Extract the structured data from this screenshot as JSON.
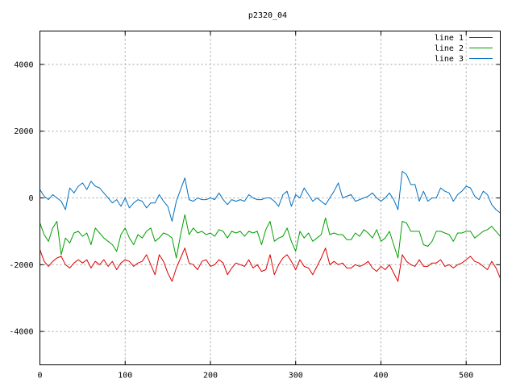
{
  "chart_data": {
    "type": "line",
    "title": "p2320_04",
    "xlabel": "",
    "ylabel": "",
    "xlim": [
      0,
      540
    ],
    "ylim": [
      -5000,
      5000
    ],
    "xticks": [
      0,
      100,
      200,
      300,
      400,
      500
    ],
    "yticks": [
      -4000,
      -2000,
      0,
      2000,
      4000
    ],
    "grid": true,
    "legend_position": "top-right",
    "series": [
      {
        "name": "line 1",
        "color": "#dd0000",
        "x": [
          0,
          5,
          10,
          15,
          20,
          25,
          30,
          35,
          40,
          45,
          50,
          55,
          60,
          65,
          70,
          75,
          80,
          85,
          90,
          95,
          100,
          105,
          110,
          115,
          120,
          125,
          130,
          135,
          140,
          145,
          150,
          155,
          160,
          165,
          170,
          175,
          180,
          185,
          190,
          195,
          200,
          205,
          210,
          215,
          220,
          225,
          230,
          235,
          240,
          245,
          250,
          255,
          260,
          265,
          270,
          275,
          280,
          285,
          290,
          295,
          300,
          305,
          310,
          315,
          320,
          325,
          330,
          335,
          340,
          345,
          350,
          355,
          360,
          365,
          370,
          375,
          380,
          385,
          390,
          395,
          400,
          405,
          410,
          415,
          420,
          425,
          430,
          435,
          440,
          445,
          450,
          455,
          460,
          465,
          470,
          475,
          480,
          485,
          490,
          495,
          500,
          505,
          510,
          515,
          520,
          525,
          530,
          535,
          540
        ],
        "values": [
          -1550,
          -1900,
          -2050,
          -1900,
          -1800,
          -1750,
          -2000,
          -2100,
          -1950,
          -1850,
          -1950,
          -1850,
          -2100,
          -1900,
          -2000,
          -1850,
          -2050,
          -1900,
          -2150,
          -1950,
          -1850,
          -1900,
          -2050,
          -1950,
          -1900,
          -1700,
          -2000,
          -2300,
          -1700,
          -1900,
          -2250,
          -2500,
          -2100,
          -1800,
          -1500,
          -1950,
          -2000,
          -2150,
          -1900,
          -1850,
          -2050,
          -2000,
          -1850,
          -1950,
          -2300,
          -2100,
          -1950,
          -2000,
          -2050,
          -1850,
          -2100,
          -2000,
          -2200,
          -2150,
          -1700,
          -2300,
          -2000,
          -1800,
          -1700,
          -1900,
          -2150,
          -1850,
          -2050,
          -2100,
          -2300,
          -2050,
          -1800,
          -1500,
          -2000,
          -1900,
          -2000,
          -1950,
          -2100,
          -2100,
          -2000,
          -2050,
          -2000,
          -1900,
          -2100,
          -2200,
          -2050,
          -2150,
          -2000,
          -2250,
          -2500,
          -1700,
          -1900,
          -2000,
          -2050,
          -1850,
          -2050,
          -2050,
          -1950,
          -1950,
          -1850,
          -2050,
          -2000,
          -2100,
          -2000,
          -1950,
          -1850,
          -1750,
          -1900,
          -1950,
          -2050,
          -2150,
          -1900,
          -2100,
          -2400
        ]
      },
      {
        "name": "line 2",
        "color": "#00a000",
        "x": [
          0,
          5,
          10,
          15,
          20,
          25,
          30,
          35,
          40,
          45,
          50,
          55,
          60,
          65,
          70,
          75,
          80,
          85,
          90,
          95,
          100,
          105,
          110,
          115,
          120,
          125,
          130,
          135,
          140,
          145,
          150,
          155,
          160,
          165,
          170,
          175,
          180,
          185,
          190,
          195,
          200,
          205,
          210,
          215,
          220,
          225,
          230,
          235,
          240,
          245,
          250,
          255,
          260,
          265,
          270,
          275,
          280,
          285,
          290,
          295,
          300,
          305,
          310,
          315,
          320,
          325,
          330,
          335,
          340,
          345,
          350,
          355,
          360,
          365,
          370,
          375,
          380,
          385,
          390,
          395,
          400,
          405,
          410,
          415,
          420,
          425,
          430,
          435,
          440,
          445,
          450,
          455,
          460,
          465,
          470,
          475,
          480,
          485,
          490,
          495,
          500,
          505,
          510,
          515,
          520,
          525,
          530,
          535,
          540
        ],
        "values": [
          -750,
          -1100,
          -1300,
          -900,
          -700,
          -1700,
          -1200,
          -1350,
          -1050,
          -1000,
          -1150,
          -1050,
          -1400,
          -900,
          -1050,
          -1200,
          -1300,
          -1400,
          -1600,
          -1100,
          -900,
          -1200,
          -1400,
          -1100,
          -1200,
          -1000,
          -900,
          -1300,
          -1200,
          -1050,
          -1100,
          -1200,
          -1800,
          -1100,
          -500,
          -1100,
          -900,
          -1050,
          -1000,
          -1100,
          -1050,
          -1150,
          -950,
          -1000,
          -1200,
          -1000,
          -1050,
          -1000,
          -1150,
          -1000,
          -1050,
          -1000,
          -1400,
          -950,
          -700,
          -1300,
          -1200,
          -1150,
          -900,
          -1300,
          -1600,
          -1000,
          -1200,
          -1050,
          -1300,
          -1200,
          -1100,
          -600,
          -1100,
          -1050,
          -1100,
          -1100,
          -1250,
          -1250,
          -1050,
          -1150,
          -950,
          -1050,
          -1200,
          -950,
          -1300,
          -1200,
          -1000,
          -1400,
          -1800,
          -700,
          -750,
          -1000,
          -1000,
          -1000,
          -1400,
          -1450,
          -1300,
          -1000,
          -1000,
          -1050,
          -1100,
          -1300,
          -1050,
          -1050,
          -1000,
          -1000,
          -1200,
          -1100,
          -1000,
          -950,
          -850,
          -1000,
          -1150
        ]
      },
      {
        "name": "line 3",
        "color": "#0070c0",
        "x": [
          0,
          5,
          10,
          15,
          20,
          25,
          30,
          35,
          40,
          45,
          50,
          55,
          60,
          65,
          70,
          75,
          80,
          85,
          90,
          95,
          100,
          105,
          110,
          115,
          120,
          125,
          130,
          135,
          140,
          145,
          150,
          155,
          160,
          165,
          170,
          175,
          180,
          185,
          190,
          195,
          200,
          205,
          210,
          215,
          220,
          225,
          230,
          235,
          240,
          245,
          250,
          255,
          260,
          265,
          270,
          275,
          280,
          285,
          290,
          295,
          300,
          305,
          310,
          315,
          320,
          325,
          330,
          335,
          340,
          345,
          350,
          355,
          360,
          365,
          370,
          375,
          380,
          385,
          390,
          395,
          400,
          405,
          410,
          415,
          420,
          425,
          430,
          435,
          440,
          445,
          450,
          455,
          460,
          465,
          470,
          475,
          480,
          485,
          490,
          495,
          500,
          505,
          510,
          515,
          520,
          525,
          530,
          535,
          540
        ],
        "values": [
          250,
          50,
          -50,
          100,
          0,
          -100,
          -350,
          300,
          150,
          350,
          450,
          250,
          500,
          350,
          300,
          150,
          0,
          -150,
          -50,
          -250,
          0,
          -300,
          -150,
          -50,
          -100,
          -300,
          -150,
          -150,
          100,
          -100,
          -250,
          -700,
          -100,
          250,
          600,
          -50,
          -100,
          0,
          -50,
          -50,
          0,
          -50,
          150,
          -50,
          -200,
          -50,
          -100,
          -50,
          -100,
          100,
          0,
          -50,
          -50,
          0,
          0,
          -100,
          -250,
          100,
          200,
          -250,
          100,
          0,
          300,
          100,
          -100,
          0,
          -100,
          -200,
          0,
          200,
          450,
          0,
          50,
          100,
          -100,
          -50,
          0,
          50,
          150,
          0,
          -100,
          0,
          150,
          -50,
          -350,
          800,
          700,
          400,
          400,
          -100,
          200,
          -100,
          0,
          0,
          300,
          200,
          150,
          -100,
          100,
          200,
          350,
          300,
          50,
          -50,
          200,
          100,
          -200,
          -350,
          -450
        ]
      }
    ]
  }
}
